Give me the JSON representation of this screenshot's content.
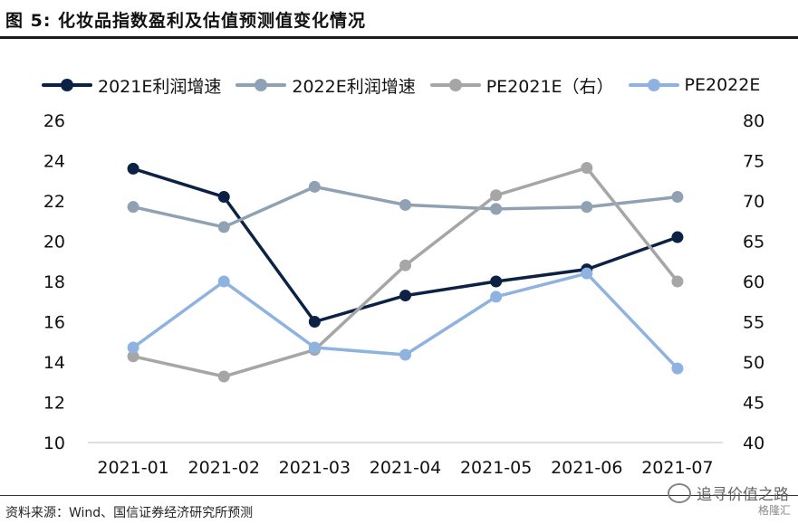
{
  "title": "图  5:  化妆品指数盈利及估值预测值变化情况",
  "source": "资料来源：Wind、国信证券经济研究所预测",
  "watermark": "追寻价值之路",
  "watermark_logo": "格隆汇",
  "colors": {
    "series1": "#0b2245",
    "series2": "#8fa1b3",
    "series3": "#a6a6a6",
    "series4": "#8fb3e0"
  },
  "chart_data": {
    "type": "line",
    "categories": [
      "2021-01",
      "2021-02",
      "2021-03",
      "2021-04",
      "2021-05",
      "2021-06",
      "2021-07"
    ],
    "y_left": {
      "min": 10,
      "max": 26,
      "step": 2,
      "ticks": [
        "10",
        "12",
        "14",
        "16",
        "18",
        "20",
        "22",
        "24",
        "26"
      ]
    },
    "y_right": {
      "min": 40,
      "max": 80,
      "step": 5,
      "ticks": [
        "40",
        "45",
        "50",
        "55",
        "60",
        "65",
        "70",
        "75",
        "80"
      ]
    },
    "legend_position": "top",
    "grid": false,
    "series": [
      {
        "name": "2021E利润增速",
        "axis": "left",
        "color": "#0b2245",
        "values": [
          23.6,
          22.2,
          16.0,
          17.3,
          18.0,
          18.6,
          20.2
        ]
      },
      {
        "name": "2022E利润增速",
        "axis": "left",
        "color": "#8fa1b3",
        "values": [
          21.7,
          20.7,
          22.7,
          21.8,
          21.6,
          21.7,
          22.2
        ]
      },
      {
        "name": "PE2021E（右）",
        "axis": "right",
        "color": "#a6a6a6",
        "values": [
          50.7,
          48.2,
          51.5,
          62.0,
          70.7,
          74.1,
          60.0
        ]
      },
      {
        "name": "PE2022E",
        "axis": "right",
        "color": "#8fb3e0",
        "values": [
          51.8,
          60.0,
          51.8,
          50.9,
          58.1,
          61.0,
          49.2
        ]
      }
    ]
  }
}
